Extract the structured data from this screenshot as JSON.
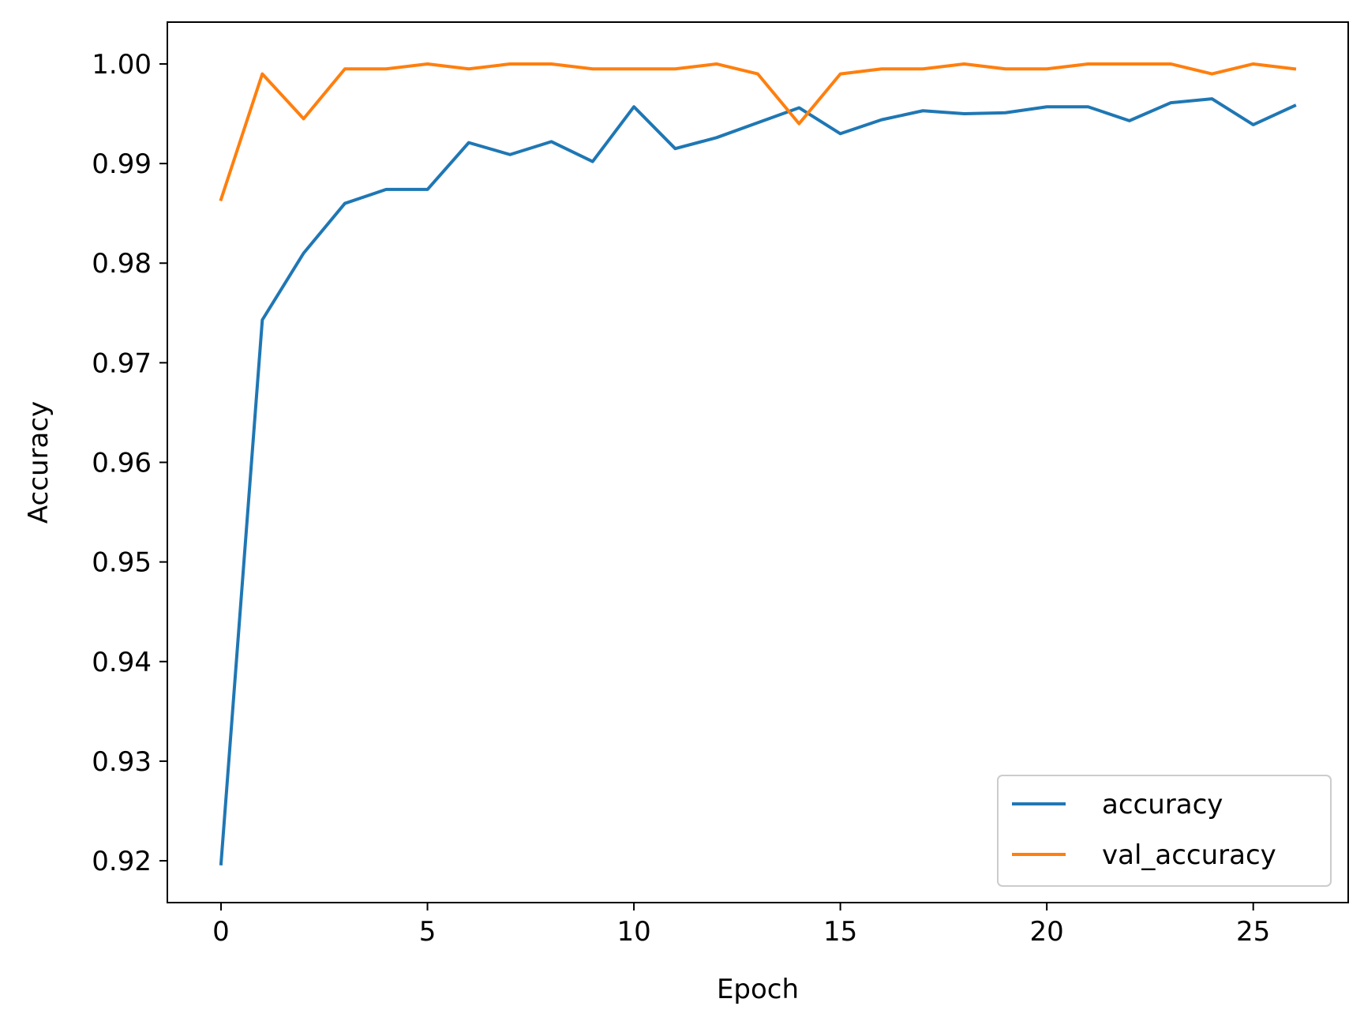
{
  "chart_data": {
    "type": "line",
    "title": "",
    "xlabel": "Epoch",
    "ylabel": "Accuracy",
    "xlim": [
      -1.3,
      27.3
    ],
    "ylim": [
      0.9158,
      1.0042
    ],
    "xticks": [
      0,
      5,
      10,
      15,
      20,
      25
    ],
    "xtick_labels": [
      "0",
      "5",
      "10",
      "15",
      "20",
      "25"
    ],
    "yticks": [
      0.92,
      0.93,
      0.94,
      0.95,
      0.96,
      0.97,
      0.98,
      0.99,
      1.0
    ],
    "ytick_labels": [
      "0.92",
      "0.93",
      "0.94",
      "0.95",
      "0.96",
      "0.97",
      "0.98",
      "0.99",
      "1.00"
    ],
    "grid": false,
    "legend_position": "lower-right",
    "x": [
      0,
      1,
      2,
      3,
      4,
      5,
      6,
      7,
      8,
      9,
      10,
      11,
      12,
      13,
      14,
      15,
      16,
      17,
      18,
      19,
      20,
      21,
      22,
      23,
      24,
      25,
      26
    ],
    "series": [
      {
        "name": "accuracy",
        "color": "#1f77b4",
        "values": [
          0.9197,
          0.9743,
          0.981,
          0.986,
          0.9874,
          0.9874,
          0.9921,
          0.9909,
          0.9922,
          0.9902,
          0.9957,
          0.9915,
          0.9926,
          0.9941,
          0.9956,
          0.993,
          0.9944,
          0.9953,
          0.995,
          0.9951,
          0.9957,
          0.9957,
          0.9943,
          0.9961,
          0.9965,
          0.9939,
          0.9958
        ]
      },
      {
        "name": "val_accuracy",
        "color": "#ff7f0e",
        "values": [
          0.9864,
          0.999,
          0.9945,
          0.9995,
          0.9995,
          1.0,
          0.9995,
          1.0,
          1.0,
          0.9995,
          0.9995,
          0.9995,
          1.0,
          0.999,
          0.994,
          0.999,
          0.9995,
          0.9995,
          1.0,
          0.9995,
          0.9995,
          1.0,
          1.0,
          1.0,
          0.999,
          1.0,
          0.9995
        ]
      }
    ]
  }
}
